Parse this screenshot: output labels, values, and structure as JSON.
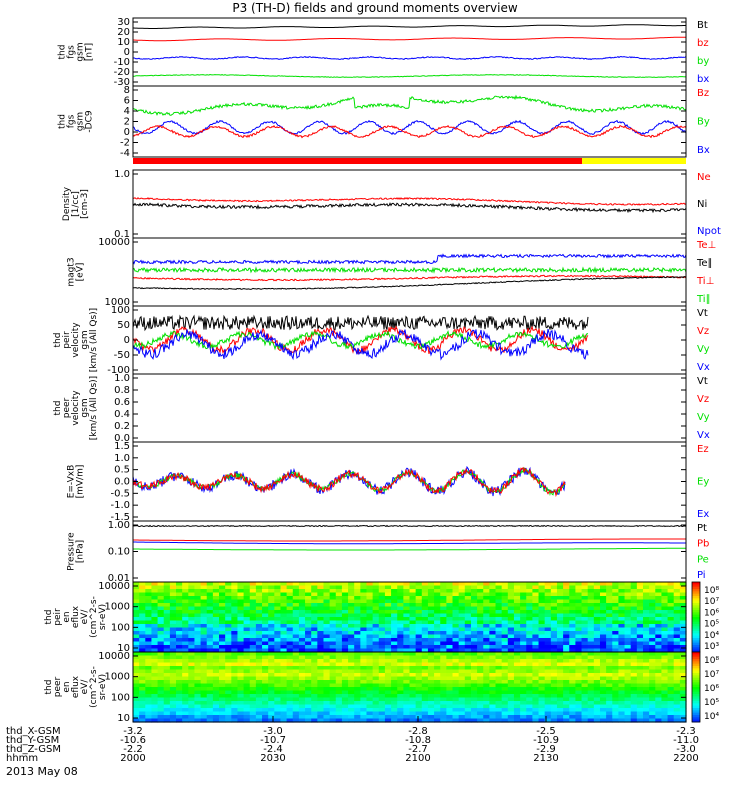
{
  "title": "P3 (TH-D) fields and ground moments overview",
  "date": "2013 May 08",
  "colors": {
    "black": "#000000",
    "red": "#ff0000",
    "green": "#00e000",
    "blue": "#0000ff",
    "yellow": "#ffff00"
  },
  "panels": [
    {
      "id": "fgs",
      "ylabel": [
        "thd",
        "fgs",
        "gsm",
        "[nT]"
      ],
      "yticks": [
        "30",
        "20",
        "10",
        "0",
        "-10",
        "-20",
        "-30"
      ],
      "legend": [
        {
          "text": "Bt",
          "color": "black"
        },
        {
          "text": "bz",
          "color": "red"
        },
        {
          "text": "by",
          "color": "green"
        },
        {
          "text": "bx",
          "color": "blue"
        }
      ]
    },
    {
      "id": "fgs-dsl",
      "ylabel": [
        "thd",
        "fgs",
        "gsm",
        "-DC9"
      ],
      "yticks": [
        "8",
        "6",
        "4",
        "2",
        "0",
        "-2",
        "-4"
      ],
      "legend": [
        {
          "text": "Bz",
          "color": "red"
        },
        {
          "text": "By",
          "color": "green"
        },
        {
          "text": "Bx",
          "color": "blue"
        }
      ]
    },
    {
      "id": "density",
      "ylabel": [
        "Density",
        "[1/cc]",
        "[cm-3]"
      ],
      "yticks": [
        "1.0",
        "0.1"
      ],
      "legend": [
        {
          "text": "Ne",
          "color": "red"
        },
        {
          "text": "Ni",
          "color": "black"
        },
        {
          "text": "Npot",
          "color": "blue"
        }
      ]
    },
    {
      "id": "temperature",
      "ylabel": [
        "magt3",
        "[eV]"
      ],
      "yticks": [
        "10000",
        "1000"
      ],
      "legend": [
        {
          "text": "Te⊥",
          "color": "red"
        },
        {
          "text": "Te∥",
          "color": "black"
        },
        {
          "text": "Ti⊥",
          "color": "red"
        },
        {
          "text": "Ti∥",
          "color": "green"
        }
      ]
    },
    {
      "id": "ion-velocity",
      "ylabel": [
        "thd",
        "peir",
        "velocity",
        "gsm",
        "[km/s (All Qs)]"
      ],
      "yticks": [
        "100",
        "50",
        "0",
        "-50",
        "-100"
      ],
      "legend": [
        {
          "text": "Vt",
          "color": "black"
        },
        {
          "text": "Vz",
          "color": "red"
        },
        {
          "text": "Vy",
          "color": "green"
        },
        {
          "text": "Vx",
          "color": "blue"
        }
      ]
    },
    {
      "id": "electron-velocity",
      "ylabel": [
        "thd",
        "peer",
        "velocity",
        "gsm",
        "[km/s (All Qs)]"
      ],
      "yticks": [
        "1.0",
        "0.8",
        "0.6",
        "0.4",
        "0.2",
        "0.0"
      ],
      "legend": [
        {
          "text": "Vt",
          "color": "black"
        },
        {
          "text": "Vz",
          "color": "red"
        },
        {
          "text": "Vy",
          "color": "green"
        },
        {
          "text": "Vx",
          "color": "blue"
        }
      ]
    },
    {
      "id": "efield",
      "ylabel": [
        "E=-VxB",
        "[mV/m]"
      ],
      "yticks": [
        "1.5",
        "1.0",
        "0.5",
        "0.0",
        "-0.5",
        "-1.0",
        "-1.5"
      ],
      "legend": [
        {
          "text": "Ez",
          "color": "red"
        },
        {
          "text": "Ey",
          "color": "green"
        },
        {
          "text": "Ex",
          "color": "blue"
        }
      ]
    },
    {
      "id": "pressure",
      "ylabel": [
        "Pressure",
        "[nPa]"
      ],
      "yticks": [
        "1.00",
        "0.10",
        "0.01"
      ],
      "legend": [
        {
          "text": "Pt",
          "color": "black"
        },
        {
          "text": "Pb",
          "color": "red"
        },
        {
          "text": "Pe",
          "color": "green"
        },
        {
          "text": "Pi",
          "color": "blue"
        }
      ]
    },
    {
      "id": "ion-spectrogram",
      "ylabel": [
        "thd",
        "peir",
        "en",
        "eflux",
        "eV/",
        "(cm^2-s-",
        "sr-eV)"
      ],
      "yticks": [
        "10000",
        "1000",
        "100",
        "10"
      ],
      "colorbar": [
        "10⁸",
        "10⁷",
        "10⁶",
        "10⁵",
        "10⁴",
        "10³"
      ]
    },
    {
      "id": "electron-spectrogram",
      "ylabel": [
        "thd",
        "peer",
        "en",
        "eflux",
        "eV/",
        "(cm^2-s-",
        "sr-eV)"
      ],
      "yticks": [
        "10000",
        "1000",
        "100",
        "10"
      ],
      "colorbar": [
        "10⁸",
        "10⁷",
        "10⁶",
        "10⁵",
        "10⁴"
      ]
    }
  ],
  "xaxis": {
    "row_labels": [
      "thd_X-GSM",
      "thd_Y-GSM",
      "thd_Z-GSM",
      "hhmm"
    ],
    "ticks": [
      {
        "X": "-3.2",
        "Y": "-10.6",
        "Z": "-2.2",
        "time": "2000"
      },
      {
        "X": "-3.0",
        "Y": "-10.7",
        "Z": "-2.4",
        "time": "2030"
      },
      {
        "X": "-2.8",
        "Y": "-10.8",
        "Z": "-2.7",
        "time": "2100"
      },
      {
        "X": "-2.5",
        "Y": "-10.9",
        "Z": "-2.9",
        "time": "2130"
      },
      {
        "X": "-2.3",
        "Y": "-11.0",
        "Z": "-3.0",
        "time": "2200"
      }
    ]
  },
  "chart_data": {
    "type": "line",
    "title": "P3 (TH-D) fields and ground moments overview",
    "x": [
      "2000",
      "2030",
      "2100",
      "2130",
      "2200"
    ],
    "panels": [
      {
        "name": "thd fgs gsm [nT]",
        "ylim": [
          -30,
          30
        ],
        "series": [
          {
            "name": "Bt",
            "approx_level": 24
          },
          {
            "name": "bz",
            "approx_level": 12
          },
          {
            "name": "by",
            "approx_level": -18
          },
          {
            "name": "bx",
            "approx_level": -3
          }
        ]
      },
      {
        "name": "thd fgs gsm -DC9",
        "ylim": [
          -4,
          8
        ],
        "series": [
          {
            "name": "Bz",
            "approx_level": 0
          },
          {
            "name": "By",
            "approx_level": 5
          },
          {
            "name": "Bx",
            "approx_level": 0
          }
        ]
      },
      {
        "name": "Density [1/cc]",
        "scale": "log",
        "ylim": [
          0.1,
          1.0
        ],
        "series": [
          {
            "name": "Ne",
            "approx_level": 0.38
          },
          {
            "name": "Ni",
            "approx_level": 0.28
          }
        ]
      },
      {
        "name": "magt3 [eV]",
        "scale": "log",
        "ylim": [
          1000,
          10000
        ],
        "series": [
          {
            "name": "Te∥",
            "approx_level": 5000
          },
          {
            "name": "Ti∥",
            "approx_level": 3500
          },
          {
            "name": "Ti⊥",
            "approx_level": 2600
          },
          {
            "name": "Te⊥",
            "approx_level": 1900
          }
        ]
      },
      {
        "name": "thd peir velocity gsm",
        "ylim": [
          -100,
          100
        ],
        "series": [
          {
            "name": "Vt",
            "approx_level": 20
          },
          {
            "name": "Vz",
            "approx_level": 0
          },
          {
            "name": "Vy",
            "approx_level": 0
          },
          {
            "name": "Vx",
            "approx_level": -10
          }
        ]
      },
      {
        "name": "thd peer velocity gsm",
        "ylim": [
          0,
          1
        ],
        "series": []
      },
      {
        "name": "E=-VxB [mV/m]",
        "ylim": [
          -1.5,
          1.5
        ],
        "series": [
          {
            "name": "Ez",
            "approx_level": 0.2
          },
          {
            "name": "Ey",
            "approx_level": 0.2
          },
          {
            "name": "Ex",
            "approx_level": 0
          }
        ]
      },
      {
        "name": "Pressure [nPa]",
        "scale": "log",
        "ylim": [
          0.01,
          1.0
        ],
        "series": [
          {
            "name": "Pt",
            "approx_level": 0.6
          },
          {
            "name": "Pb",
            "approx_level": 0.25
          },
          {
            "name": "Pi",
            "approx_level": 0.22
          },
          {
            "name": "Pe",
            "approx_level": 0.1
          }
        ]
      }
    ],
    "spectrograms": [
      {
        "name": "thd peir en eflux",
        "ylim": [
          10,
          10000
        ],
        "zlim": [
          1000,
          100000000
        ]
      },
      {
        "name": "thd peer en eflux",
        "ylim": [
          10,
          10000
        ],
        "zlim": [
          10000,
          100000000
        ]
      }
    ]
  }
}
